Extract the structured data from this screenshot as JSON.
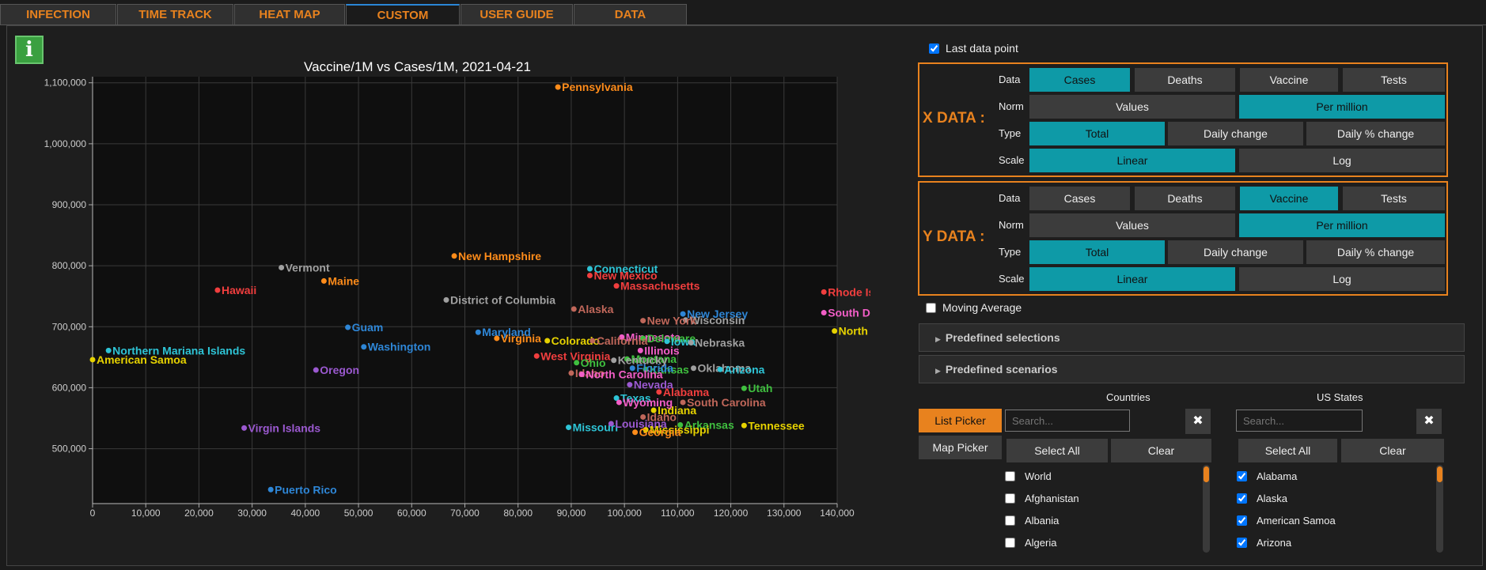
{
  "tabs": [
    {
      "label": "INFECTION MAPS",
      "active": false
    },
    {
      "label": "TIME TRACK",
      "active": false
    },
    {
      "label": "HEAT MAP",
      "active": false
    },
    {
      "label": "CUSTOM GRAPH",
      "active": true
    },
    {
      "label": "USER GUIDE",
      "active": false
    },
    {
      "label": "DATA SOURCES",
      "active": false
    }
  ],
  "info_label": "i",
  "last_data_point": {
    "label": "Last data point",
    "checked": true
  },
  "x_axis": {
    "title": "X DATA :",
    "rows": {
      "data": "Data",
      "norm": "Norm",
      "type": "Type",
      "scale": "Scale"
    },
    "data_options": [
      "Cases",
      "Deaths",
      "Vaccine",
      "Tests"
    ],
    "data_selected": "Cases",
    "norm_options": [
      "Values",
      "Per million"
    ],
    "norm_selected": "Per million",
    "type_options": [
      "Total",
      "Daily change",
      "Daily % change"
    ],
    "type_selected": "Total",
    "scale_options": [
      "Linear",
      "Log"
    ],
    "scale_selected": "Linear"
  },
  "y_axis": {
    "title": "Y DATA :",
    "rows": {
      "data": "Data",
      "norm": "Norm",
      "type": "Type",
      "scale": "Scale"
    },
    "data_options": [
      "Cases",
      "Deaths",
      "Vaccine",
      "Tests"
    ],
    "data_selected": "Vaccine",
    "norm_options": [
      "Values",
      "Per million"
    ],
    "norm_selected": "Per million",
    "type_options": [
      "Total",
      "Daily change",
      "Daily % change"
    ],
    "type_selected": "Total",
    "scale_options": [
      "Linear",
      "Log"
    ],
    "scale_selected": "Linear"
  },
  "moving_average": {
    "label": "Moving Average",
    "checked": false
  },
  "accordions": [
    "Predefined selections",
    "Predefined scenarios"
  ],
  "countries": {
    "title": "Countries",
    "search_placeholder": "Search...",
    "select_all": "Select All",
    "clear": "Clear",
    "items": [
      {
        "label": "World",
        "checked": false
      },
      {
        "label": "Afghanistan",
        "checked": false
      },
      {
        "label": "Albania",
        "checked": false
      },
      {
        "label": "Algeria",
        "checked": false
      }
    ]
  },
  "us_states": {
    "title": "US States",
    "search_placeholder": "Search...",
    "select_all": "Select All",
    "clear": "Clear",
    "items": [
      {
        "label": "Alabama",
        "checked": true
      },
      {
        "label": "Alaska",
        "checked": true
      },
      {
        "label": "American Samoa",
        "checked": true
      },
      {
        "label": "Arizona",
        "checked": true
      }
    ]
  },
  "picker": {
    "list": "List Picker",
    "map": "Map Picker"
  },
  "colors": {
    "accent": "#e8821e",
    "selected": "#0e9aa7",
    "info": "#3aa040"
  },
  "chart_data": {
    "type": "scatter",
    "title": "Vaccine/1M vs Cases/1M, 2021-04-21",
    "xlabel": "",
    "ylabel": "",
    "xlim": [
      0,
      140000
    ],
    "ylim": [
      410000,
      1110000
    ],
    "xticks": [
      0,
      10000,
      20000,
      30000,
      40000,
      50000,
      60000,
      70000,
      80000,
      90000,
      100000,
      110000,
      120000,
      130000,
      140000
    ],
    "xtick_labels": [
      "0",
      "10,000",
      "20,000",
      "30,000",
      "40,000",
      "50,000",
      "60,000",
      "70,000",
      "80,000",
      "90,000",
      "100,000",
      "110,000",
      "120,000",
      "130,000",
      "140,000"
    ],
    "yticks": [
      500000,
      600000,
      700000,
      800000,
      900000,
      1000000,
      1100000
    ],
    "ytick_labels": [
      "500,000",
      "600,000",
      "700,000",
      "800,000",
      "900,000",
      "1,000,000",
      "1,100,000"
    ],
    "grid": true,
    "points": [
      {
        "name": "Pennsylvania",
        "x": 87500,
        "y": 1093000,
        "color": "#ff8c1a"
      },
      {
        "name": "New Hampshire",
        "x": 68000,
        "y": 816000,
        "color": "#ff8c1a"
      },
      {
        "name": "Connecticut",
        "x": 93500,
        "y": 795000,
        "color": "#2ec4d6"
      },
      {
        "name": "New Mexico",
        "x": 93500,
        "y": 784000,
        "color": "#f03e3e"
      },
      {
        "name": "Massachusetts",
        "x": 98500,
        "y": 767000,
        "color": "#f03e3e"
      },
      {
        "name": "Vermont",
        "x": 35500,
        "y": 797000,
        "color": "#a0a0a0"
      },
      {
        "name": "Maine",
        "x": 43500,
        "y": 775000,
        "color": "#ff8c1a"
      },
      {
        "name": "Hawaii",
        "x": 23500,
        "y": 760000,
        "color": "#f03e3e"
      },
      {
        "name": "District of Columbia",
        "x": 66500,
        "y": 744000,
        "color": "#a0a0a0"
      },
      {
        "name": "Alaska",
        "x": 90500,
        "y": 729000,
        "color": "#c0675a"
      },
      {
        "name": "Rhode Island",
        "x": 137500,
        "y": 757000,
        "color": "#f03e3e"
      },
      {
        "name": "South Dakota",
        "x": 137500,
        "y": 723000,
        "color": "#f25ec7"
      },
      {
        "name": "North Dakota",
        "x": 139500,
        "y": 693000,
        "color": "#e6d200"
      },
      {
        "name": "New Jersey",
        "x": 111000,
        "y": 721000,
        "color": "#2e86d6"
      },
      {
        "name": "Wisconsin",
        "x": 111500,
        "y": 711000,
        "color": "#a0a0a0"
      },
      {
        "name": "New York",
        "x": 103500,
        "y": 710000,
        "color": "#c0675a"
      },
      {
        "name": "Guam",
        "x": 48000,
        "y": 699000,
        "color": "#2e86d6"
      },
      {
        "name": "Maryland",
        "x": 72500,
        "y": 691000,
        "color": "#2e86d6"
      },
      {
        "name": "Minnesota",
        "x": 99500,
        "y": 683000,
        "color": "#f25ec7"
      },
      {
        "name": "Delaware",
        "x": 103500,
        "y": 681000,
        "color": "#3fbf3f"
      },
      {
        "name": "Virginia",
        "x": 76000,
        "y": 681000,
        "color": "#ff8c1a"
      },
      {
        "name": "Colorado",
        "x": 85500,
        "y": 677000,
        "color": "#e6d200"
      },
      {
        "name": "California",
        "x": 94000,
        "y": 677000,
        "color": "#c0675a"
      },
      {
        "name": "Iowa",
        "x": 108000,
        "y": 676000,
        "color": "#2ec4d6"
      },
      {
        "name": "Nebraska",
        "x": 112500,
        "y": 674000,
        "color": "#a0a0a0"
      },
      {
        "name": "Illinois",
        "x": 103000,
        "y": 661000,
        "color": "#f25ec7"
      },
      {
        "name": "Washington",
        "x": 51000,
        "y": 667000,
        "color": "#2e86d6"
      },
      {
        "name": "Northern Mariana Islands",
        "x": 3000,
        "y": 661000,
        "color": "#2ec4d6"
      },
      {
        "name": "American Samoa",
        "x": 0,
        "y": 646000,
        "color": "#e6d200"
      },
      {
        "name": "West Virginia",
        "x": 83500,
        "y": 652000,
        "color": "#f03e3e"
      },
      {
        "name": "Montana",
        "x": 100500,
        "y": 647000,
        "color": "#3fbf3f"
      },
      {
        "name": "Kentucky",
        "x": 98000,
        "y": 645000,
        "color": "#a0a0a0"
      },
      {
        "name": "Ohio",
        "x": 91000,
        "y": 641000,
        "color": "#3fbf3f"
      },
      {
        "name": "Kansas",
        "x": 104000,
        "y": 630000,
        "color": "#3fbf3f"
      },
      {
        "name": "Florida",
        "x": 101500,
        "y": 632000,
        "color": "#2e86d6"
      },
      {
        "name": "Oklahoma",
        "x": 113000,
        "y": 632000,
        "color": "#a0a0a0"
      },
      {
        "name": "Arizona",
        "x": 118000,
        "y": 630000,
        "color": "#2ec4d6"
      },
      {
        "name": "Oregon",
        "x": 42000,
        "y": 629000,
        "color": "#9b59d0"
      },
      {
        "name": "Idaho",
        "x": 90000,
        "y": 624000,
        "color": "#c0675a"
      },
      {
        "name": "North Carolina",
        "x": 92000,
        "y": 622000,
        "color": "#f25ec7"
      },
      {
        "name": "Nevada",
        "x": 101000,
        "y": 605000,
        "color": "#9b59d0"
      },
      {
        "name": "Utah",
        "x": 122500,
        "y": 599000,
        "color": "#3fbf3f"
      },
      {
        "name": "Alabama",
        "x": 106500,
        "y": 593000,
        "color": "#f03e3e"
      },
      {
        "name": "Texas",
        "x": 98500,
        "y": 583000,
        "color": "#2ec4d6"
      },
      {
        "name": "Wyoming",
        "x": 99000,
        "y": 576000,
        "color": "#f25ec7"
      },
      {
        "name": "South Carolina",
        "x": 111000,
        "y": 576000,
        "color": "#c0675a"
      },
      {
        "name": "Indiana",
        "x": 105500,
        "y": 563000,
        "color": "#e6d200"
      },
      {
        "name": "Idaho",
        "x": 103500,
        "y": 552000,
        "color": "#c0675a"
      },
      {
        "name": "Virgin Islands",
        "x": 28500,
        "y": 534000,
        "color": "#9b59d0"
      },
      {
        "name": "Missouri",
        "x": 89500,
        "y": 535000,
        "color": "#2ec4d6"
      },
      {
        "name": "Louisiana",
        "x": 97500,
        "y": 541000,
        "color": "#9b59d0"
      },
      {
        "name": "Arkansas",
        "x": 110500,
        "y": 539000,
        "color": "#3fbf3f"
      },
      {
        "name": "Tennessee",
        "x": 122500,
        "y": 538000,
        "color": "#e6d200"
      },
      {
        "name": "Mississippi",
        "x": 104000,
        "y": 531000,
        "color": "#e6d200"
      },
      {
        "name": "Georgia",
        "x": 102000,
        "y": 527000,
        "color": "#ff8c1a"
      },
      {
        "name": "Puerto Rico",
        "x": 33500,
        "y": 433000,
        "color": "#2e86d6"
      }
    ]
  }
}
